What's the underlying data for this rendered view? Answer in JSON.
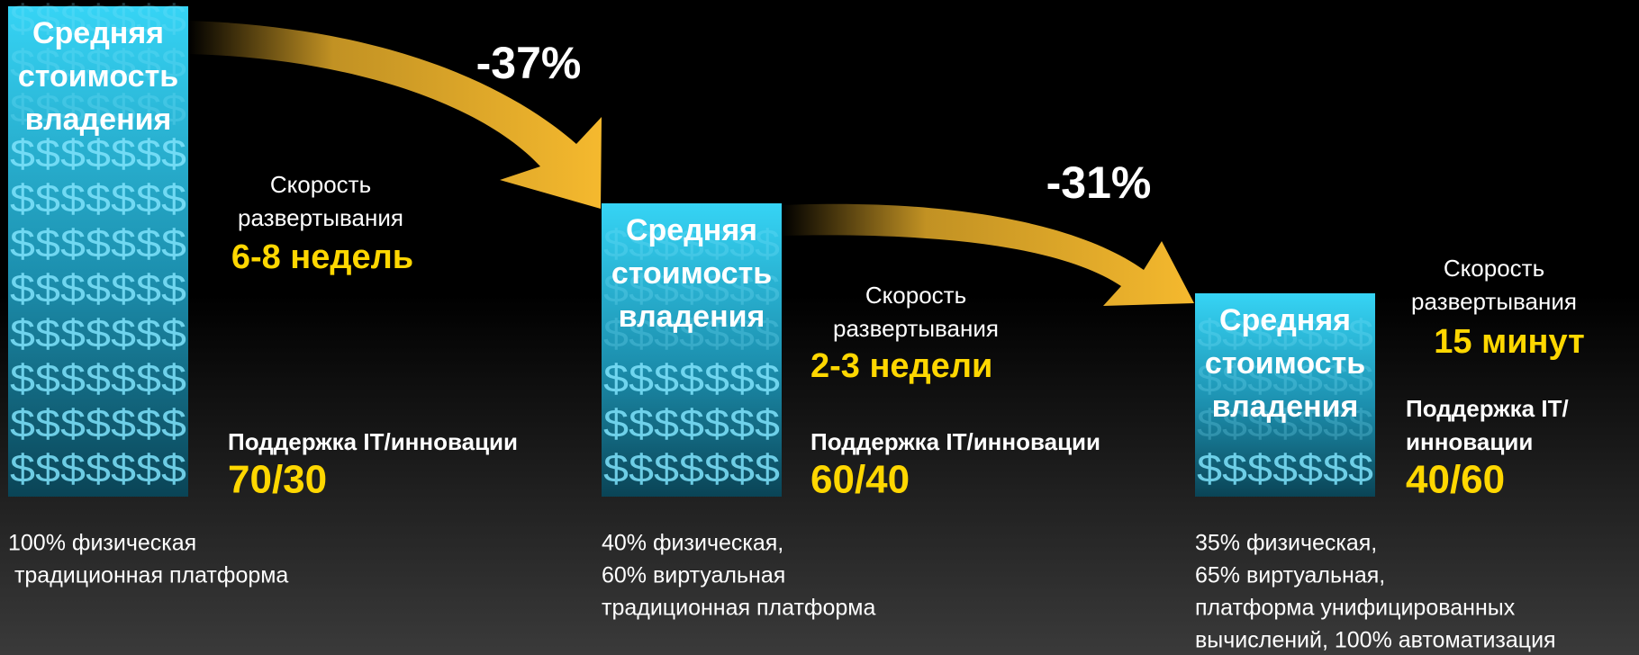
{
  "arrows": [
    {
      "label": "-37%"
    },
    {
      "label": "-31%"
    }
  ],
  "dollar_row": "$$$$$$$",
  "stages": [
    {
      "cost_label": [
        "Средняя",
        "стоимость",
        "владения"
      ],
      "speed_label": [
        "Скорость",
        "развертывания"
      ],
      "speed_value": "6-8 недель",
      "support_label": [
        "Поддержка IT/инновации"
      ],
      "support_value": "70/30",
      "platform": [
        "100% физическая",
        " традиционная платформа"
      ]
    },
    {
      "cost_label": [
        "Средняя",
        "стоимость",
        "владения"
      ],
      "speed_label": [
        "Скорость",
        "развертывания"
      ],
      "speed_value": "2-3 недели",
      "support_label": [
        "Поддержка IT/инновации"
      ],
      "support_value": "60/40",
      "platform": [
        "40% физическая,",
        "60% виртуальная",
        "традиционная платформа"
      ]
    },
    {
      "cost_label": [
        "Средняя",
        "стоимость",
        "владения"
      ],
      "speed_label": [
        "Скорость",
        "развертывания"
      ],
      "speed_value": "15 минут",
      "support_label": [
        "Поддержка IT/",
        "инновации"
      ],
      "support_value": "40/60",
      "platform": [
        "35% физическая,",
        "65% виртуальная,",
        "платформа унифицированных",
        "вычислений, 100% автоматизация"
      ]
    }
  ]
}
